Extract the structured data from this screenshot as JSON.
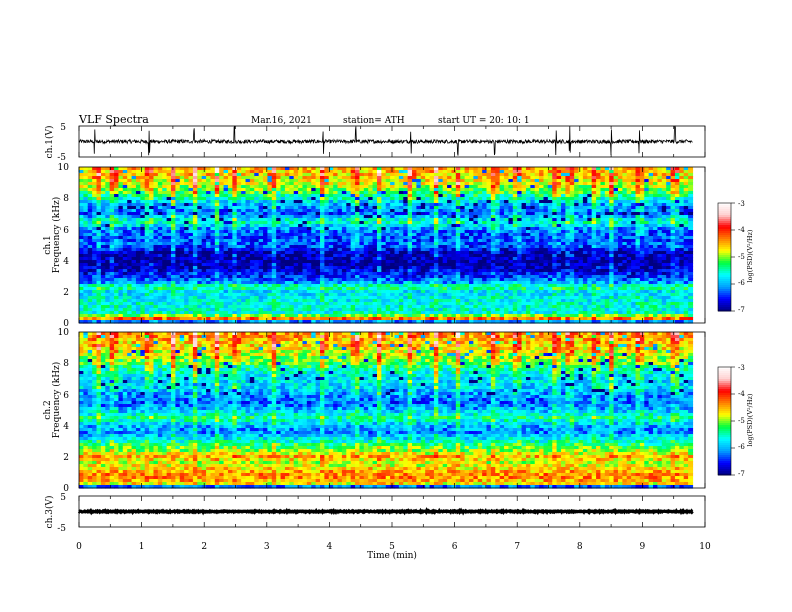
{
  "header": {
    "title": "VLF  Spectra",
    "date": "Mar.16, 2021",
    "station": "station= ATH",
    "start": "start  UT  =   20: 10: 1"
  },
  "chart_data": [
    {
      "type": "line",
      "name": "ch1-waveform",
      "ylabel": "ch.1(V)",
      "ylim": [
        -5,
        5
      ],
      "yticks": [
        "5",
        "-5"
      ],
      "xlim": [
        0,
        10
      ],
      "x_extent_min": 9.8,
      "baseline": 0.0,
      "noise_amplitude": 0.6,
      "spikes": [
        0.25,
        1.12,
        1.84,
        2.48,
        3.9,
        4.42,
        5.3,
        6.05,
        6.64,
        7.62,
        7.84,
        8.5,
        8.95,
        9.52
      ]
    },
    {
      "type": "heatmap",
      "name": "ch1-spectrogram",
      "ylabel_top": "ch.1",
      "ylabel": "Frequency  (kHz)",
      "ylim": [
        0,
        10
      ],
      "yticks": [
        "0",
        "2",
        "4",
        "6",
        "8",
        "10"
      ],
      "xlim": [
        0,
        10
      ],
      "x_extent_min": 9.8,
      "colorbar": {
        "label": "log(PSD)(V²/Hz)",
        "range": [
          -7,
          -3
        ],
        "ticks": [
          "-3",
          "-4",
          "-5",
          "-6",
          "-7"
        ],
        "colors": [
          "#000080",
          "#0000ff",
          "#00a0ff",
          "#00ffff",
          "#00ff40",
          "#ffff00",
          "#ff8000",
          "#ff0000",
          "#ffd0d0",
          "#ffffff"
        ]
      },
      "frequency_profile_log_psd": [
        [
          0.0,
          -7.0
        ],
        [
          0.3,
          -4.2
        ],
        [
          0.6,
          -5.6
        ],
        [
          1.0,
          -5.6
        ],
        [
          1.5,
          -5.7
        ],
        [
          2.0,
          -5.8
        ],
        [
          2.3,
          -5.3
        ],
        [
          2.6,
          -6.1
        ],
        [
          3.0,
          -6.5
        ],
        [
          3.5,
          -6.8
        ],
        [
          4.0,
          -6.9
        ],
        [
          4.5,
          -6.8
        ],
        [
          5.0,
          -6.3
        ],
        [
          5.5,
          -6.4
        ],
        [
          6.0,
          -6.2
        ],
        [
          6.5,
          -5.5
        ],
        [
          7.0,
          -6.3
        ],
        [
          7.5,
          -6.1
        ],
        [
          8.0,
          -5.6
        ],
        [
          8.5,
          -5.1
        ],
        [
          9.0,
          -4.8
        ],
        [
          9.5,
          -4.6
        ],
        [
          10.0,
          -4.5
        ]
      ],
      "sferic_times_min": [
        0.3,
        0.55,
        1.12,
        1.5,
        1.85,
        2.2,
        2.5,
        3.1,
        3.9,
        4.42,
        4.8,
        5.3,
        5.7,
        6.05,
        6.64,
        7.0,
        7.62,
        7.84,
        8.25,
        8.5,
        8.95,
        9.52
      ]
    },
    {
      "type": "heatmap",
      "name": "ch2-spectrogram",
      "ylabel_top": "ch.2",
      "ylabel": "Frequency  (kHz)",
      "ylim": [
        0,
        10
      ],
      "yticks": [
        "0",
        "2",
        "4",
        "6",
        "8",
        "10"
      ],
      "xlim": [
        0,
        10
      ],
      "x_extent_min": 9.8,
      "colorbar": {
        "label": "log(PSD)(V²/Hz)",
        "range": [
          -7,
          -3
        ],
        "ticks": [
          "-3",
          "-4",
          "-5",
          "-6",
          "-7"
        ],
        "colors": [
          "#000080",
          "#0000ff",
          "#00a0ff",
          "#00ffff",
          "#00ff40",
          "#ffff00",
          "#ff8000",
          "#ff0000",
          "#ffd0d0",
          "#ffffff"
        ]
      },
      "frequency_profile_log_psd": [
        [
          0.0,
          -7.0
        ],
        [
          0.3,
          -4.6
        ],
        [
          0.8,
          -4.3
        ],
        [
          1.2,
          -4.6
        ],
        [
          1.6,
          -4.9
        ],
        [
          2.0,
          -4.5
        ],
        [
          2.4,
          -5.0
        ],
        [
          2.8,
          -5.3
        ],
        [
          3.2,
          -5.8
        ],
        [
          3.6,
          -6.2
        ],
        [
          4.0,
          -6.0
        ],
        [
          4.5,
          -5.4
        ],
        [
          5.0,
          -6.0
        ],
        [
          5.5,
          -6.3
        ],
        [
          6.0,
          -6.1
        ],
        [
          6.5,
          -5.8
        ],
        [
          7.0,
          -5.8
        ],
        [
          7.5,
          -5.6
        ],
        [
          8.0,
          -5.2
        ],
        [
          8.5,
          -4.9
        ],
        [
          9.0,
          -4.7
        ],
        [
          9.5,
          -4.5
        ],
        [
          10.0,
          -4.4
        ]
      ],
      "sferic_times_min": [
        0.3,
        0.55,
        1.12,
        1.5,
        1.85,
        2.2,
        2.5,
        3.1,
        3.9,
        4.42,
        4.8,
        5.3,
        5.7,
        6.05,
        6.64,
        7.0,
        7.62,
        7.84,
        8.25,
        8.5,
        8.95,
        9.52
      ]
    },
    {
      "type": "line",
      "name": "ch3-waveform",
      "ylabel": "ch.3(V)",
      "ylim": [
        -5,
        5
      ],
      "yticks": [
        "5",
        "-5"
      ],
      "xlim": [
        0,
        10
      ],
      "x_extent_min": 9.8,
      "baseline": 0.0,
      "noise_amplitude": 0.15,
      "xlabel": "Time  (min)",
      "xticks": [
        "0",
        "1",
        "2",
        "3",
        "4",
        "5",
        "6",
        "7",
        "8",
        "9",
        "10"
      ]
    }
  ]
}
